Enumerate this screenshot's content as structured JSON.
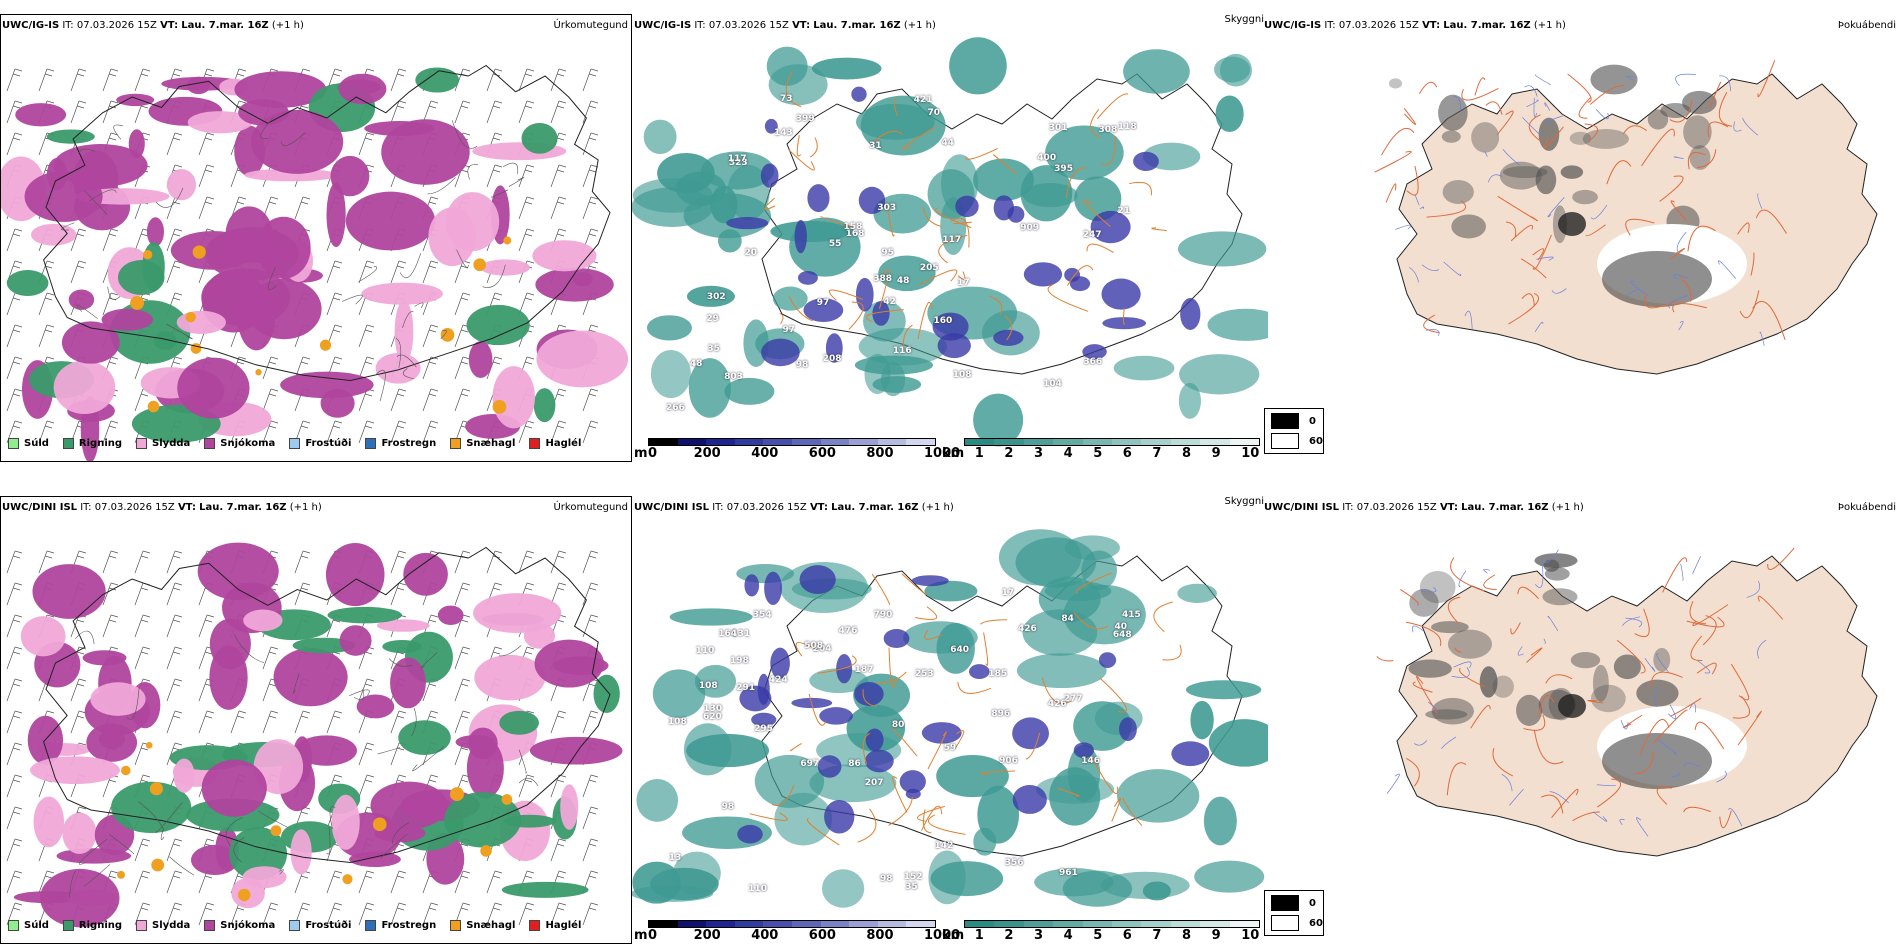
{
  "rows": [
    {
      "model": "UWC/IG-IS",
      "it_label": "IT:",
      "it_value": "07.03.2026 15Z",
      "vt_label": "VT:",
      "vt_value": "Lau. 7.mar. 16Z",
      "lead": "(+1 h)",
      "precip_title": "Úrkomutegund",
      "cloud_title": "Skyggni",
      "fog_title": "Þokuábendi",
      "cloud_labels": [
        "143",
        "247",
        "168",
        "104",
        "29",
        "323",
        "117",
        "98",
        "97",
        "308",
        "400",
        "399",
        "117",
        "118",
        "208",
        "70",
        "803",
        "395",
        "421",
        "108",
        "302",
        "158",
        "909",
        "303",
        "388",
        "366",
        "97",
        "48",
        "55",
        "301",
        "205",
        "42",
        "116",
        "73",
        "160",
        "44",
        "48",
        "266",
        "95",
        "17",
        "35",
        "31",
        "21",
        "20"
      ]
    },
    {
      "model": "UWC/DINI ISL",
      "it_label": "IT:",
      "it_value": "07.03.2026 15Z",
      "vt_label": "VT:",
      "vt_value": "Lau. 7.mar. 16Z",
      "lead": "(+1 h)",
      "precip_title": "Úrkomutegund",
      "cloud_title": "Skyggni",
      "fog_title": "Þokuábendi",
      "cloud_labels": [
        "35",
        "98",
        "13",
        "152",
        "906",
        "424",
        "640",
        "110",
        "207",
        "131",
        "295",
        "648",
        "790",
        "130",
        "198",
        "277",
        "354",
        "204",
        "185",
        "961",
        "426",
        "508",
        "476",
        "415",
        "108",
        "164",
        "98",
        "291",
        "187",
        "59",
        "110",
        "142",
        "356",
        "620",
        "40",
        "84",
        "253",
        "146",
        "697",
        "426",
        "896",
        "86",
        "108",
        "17",
        "80"
      ]
    }
  ],
  "precip_legend": [
    {
      "label": "Súld",
      "color": "#90ee90"
    },
    {
      "label": "Rigning",
      "color": "#3a9a6a"
    },
    {
      "label": "Slydda",
      "color": "#f0a8d8"
    },
    {
      "label": "Snjókoma",
      "color": "#b0459e"
    },
    {
      "label": "Frostúði",
      "color": "#9ecbf0"
    },
    {
      "label": "Frostregn",
      "color": "#2f6fb8"
    },
    {
      "label": "Snæhagl",
      "color": "#f0a020"
    },
    {
      "label": "Haglél",
      "color": "#e02020"
    }
  ],
  "cloudbase_legend": {
    "unit": "m",
    "ticks": [
      "0",
      "200",
      "400",
      "600",
      "800",
      "1000"
    ],
    "colors": [
      "#000000",
      "#10106e",
      "#1f2590",
      "#2f3ca0",
      "#4650ac",
      "#5e66b8",
      "#7a82c6",
      "#9aa0d4",
      "#b6bbe0",
      "#d2d6ee"
    ]
  },
  "visibility_legend": {
    "unit": "km",
    "ticks": [
      "1",
      "2",
      "3",
      "4",
      "5",
      "6",
      "7",
      "8",
      "9",
      "10"
    ],
    "colors": [
      "#2a8a84",
      "#3a938d",
      "#4e9f99",
      "#62aba5",
      "#78b7b2",
      "#8ec3be",
      "#a6d0cb",
      "#bcdcd8",
      "#d4e9e6",
      "#ecf5f4"
    ]
  },
  "fog_legend": [
    {
      "label": "0",
      "color": "#000000"
    },
    {
      "label": "60",
      "color": "#ffffff"
    }
  ],
  "colors": {
    "snow": "#b0459e",
    "sleet": "#f0a8d8",
    "rain": "#3a9a6a",
    "cloud_teal": "#3f9a93",
    "cloud_low": "#3a3aa8",
    "land_beige": "#f3dfcf",
    "roads": "#e06a3a",
    "rivers": "#6a7fe0"
  }
}
